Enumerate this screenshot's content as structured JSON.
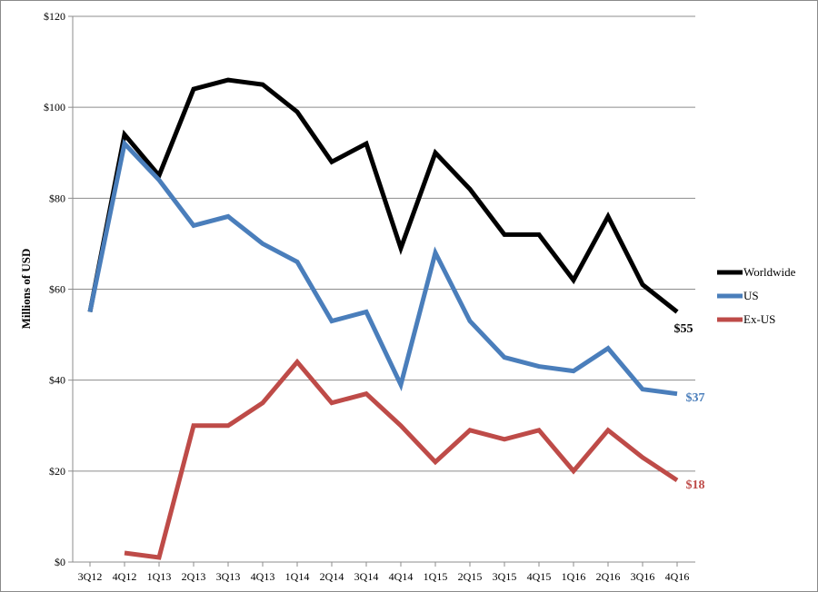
{
  "chart_data": {
    "type": "line",
    "title": "",
    "ylabel": "Millions of USD",
    "xlabel": "",
    "categories": [
      "3Q12",
      "4Q12",
      "1Q13",
      "2Q13",
      "3Q13",
      "4Q13",
      "1Q14",
      "2Q14",
      "3Q14",
      "4Q14",
      "1Q15",
      "2Q15",
      "3Q15",
      "4Q15",
      "1Q16",
      "2Q16",
      "3Q16",
      "4Q16"
    ],
    "ylim": [
      0,
      120
    ],
    "yticks": [
      0,
      20,
      40,
      60,
      80,
      100,
      120
    ],
    "ytick_labels": [
      "$0",
      "$20",
      "$40",
      "$60",
      "$80",
      "$100",
      "$120"
    ],
    "grid": "horizontal",
    "legend_position": "right",
    "series": [
      {
        "name": "Worldwide",
        "color": "#000000",
        "values": [
          55,
          94,
          85,
          104,
          106,
          105,
          99,
          88,
          92,
          69,
          90,
          82,
          72,
          72,
          62,
          76,
          61,
          55
        ],
        "end_label": "$55"
      },
      {
        "name": "US",
        "color": "#4a7ebb",
        "values": [
          55,
          92,
          84,
          74,
          76,
          70,
          66,
          53,
          55,
          39,
          68,
          53,
          45,
          43,
          42,
          47,
          38,
          37
        ],
        "end_label": "$37"
      },
      {
        "name": "Ex-US",
        "color": "#be4b48",
        "values": [
          null,
          2,
          1,
          30,
          30,
          35,
          44,
          35,
          37,
          30,
          22,
          29,
          27,
          29,
          20,
          29,
          23,
          18
        ],
        "end_label": "$18"
      }
    ]
  }
}
